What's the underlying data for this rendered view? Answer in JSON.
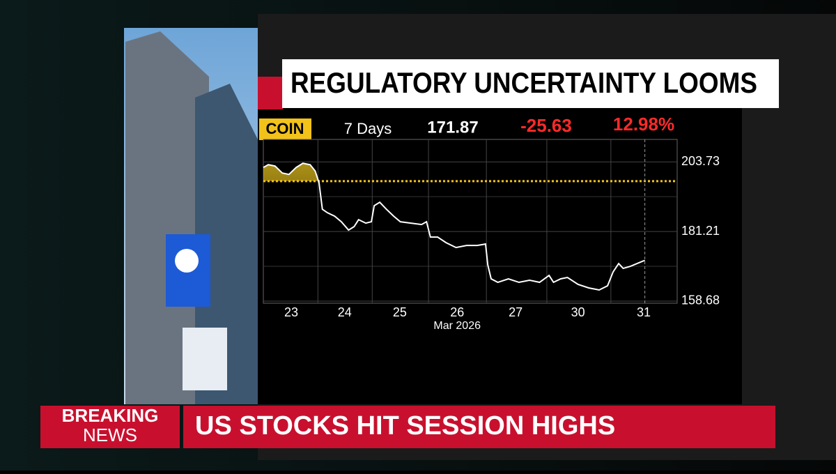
{
  "headline": "REGULATORY UNCERTAINTY LOOMS",
  "chart_data": {
    "type": "line",
    "ticker": "COIN",
    "period": "7 Days",
    "price": "171.87",
    "change": "-25.63",
    "change_percent": "12.98%",
    "x": [
      0,
      0.09,
      0.21,
      0.34,
      0.46,
      0.59,
      0.71,
      0.84,
      0.93,
      1.0,
      1.06,
      1.15,
      1.28,
      1.4,
      1.53,
      1.63,
      1.71,
      1.84,
      1.94,
      1.99,
      2.09,
      2.21,
      2.34,
      2.46,
      2.65,
      2.84,
      2.93,
      3.0,
      3.13,
      3.28,
      3.46,
      3.65,
      3.84,
      3.99,
      4.03,
      4.09,
      4.21,
      4.4,
      4.59,
      4.78,
      4.96,
      5.13,
      5.21,
      5.34,
      5.46,
      5.65,
      5.84,
      6.03,
      6.18,
      6.28,
      6.38,
      6.46,
      6.59,
      6.71,
      6.8,
      6.85
    ],
    "series": [
      {
        "name": "COIN",
        "color": "#ffffff",
        "values": [
          201.93,
          202.83,
          202.38,
          200.13,
          199.68,
          201.93,
          203.28,
          202.83,
          200.8,
          196.97,
          188.41,
          187.28,
          186.16,
          184.36,
          181.66,
          182.78,
          185.03,
          183.91,
          184.36,
          189.54,
          190.66,
          188.41,
          186.16,
          184.36,
          183.91,
          183.46,
          184.36,
          179.4,
          179.4,
          177.6,
          176.02,
          176.7,
          176.7,
          177.15,
          170.39,
          165.89,
          164.76,
          165.89,
          164.76,
          165.44,
          164.76,
          167.01,
          164.76,
          165.89,
          166.34,
          164.09,
          162.96,
          162.29,
          163.64,
          168.14,
          170.84,
          169.27,
          169.94,
          170.84,
          171.52,
          171.87
        ]
      }
    ],
    "reference": 197.5,
    "reference_color": "#f2c21b",
    "xlim": [
      0,
      7.43
    ],
    "xticks": [
      {
        "value": 0.5,
        "label": "23"
      },
      {
        "value": 1.46,
        "label": "24"
      },
      {
        "value": 2.45,
        "label": "25"
      },
      {
        "value": 3.48,
        "label": "26"
      },
      {
        "value": 4.53,
        "label": "27"
      },
      {
        "value": 5.65,
        "label": "30"
      },
      {
        "value": 6.83,
        "label": "31"
      }
    ],
    "x_sublabel": "Mar 2026",
    "ylim": [
      158,
      211
    ],
    "yticks": [
      158.68,
      181.21,
      203.73
    ],
    "grid": true
  },
  "ticker_bar": {
    "label_top": "BREAKING",
    "label_bottom": "NEWS",
    "text": "US STOCKS HIT SESSION HIGHS"
  }
}
